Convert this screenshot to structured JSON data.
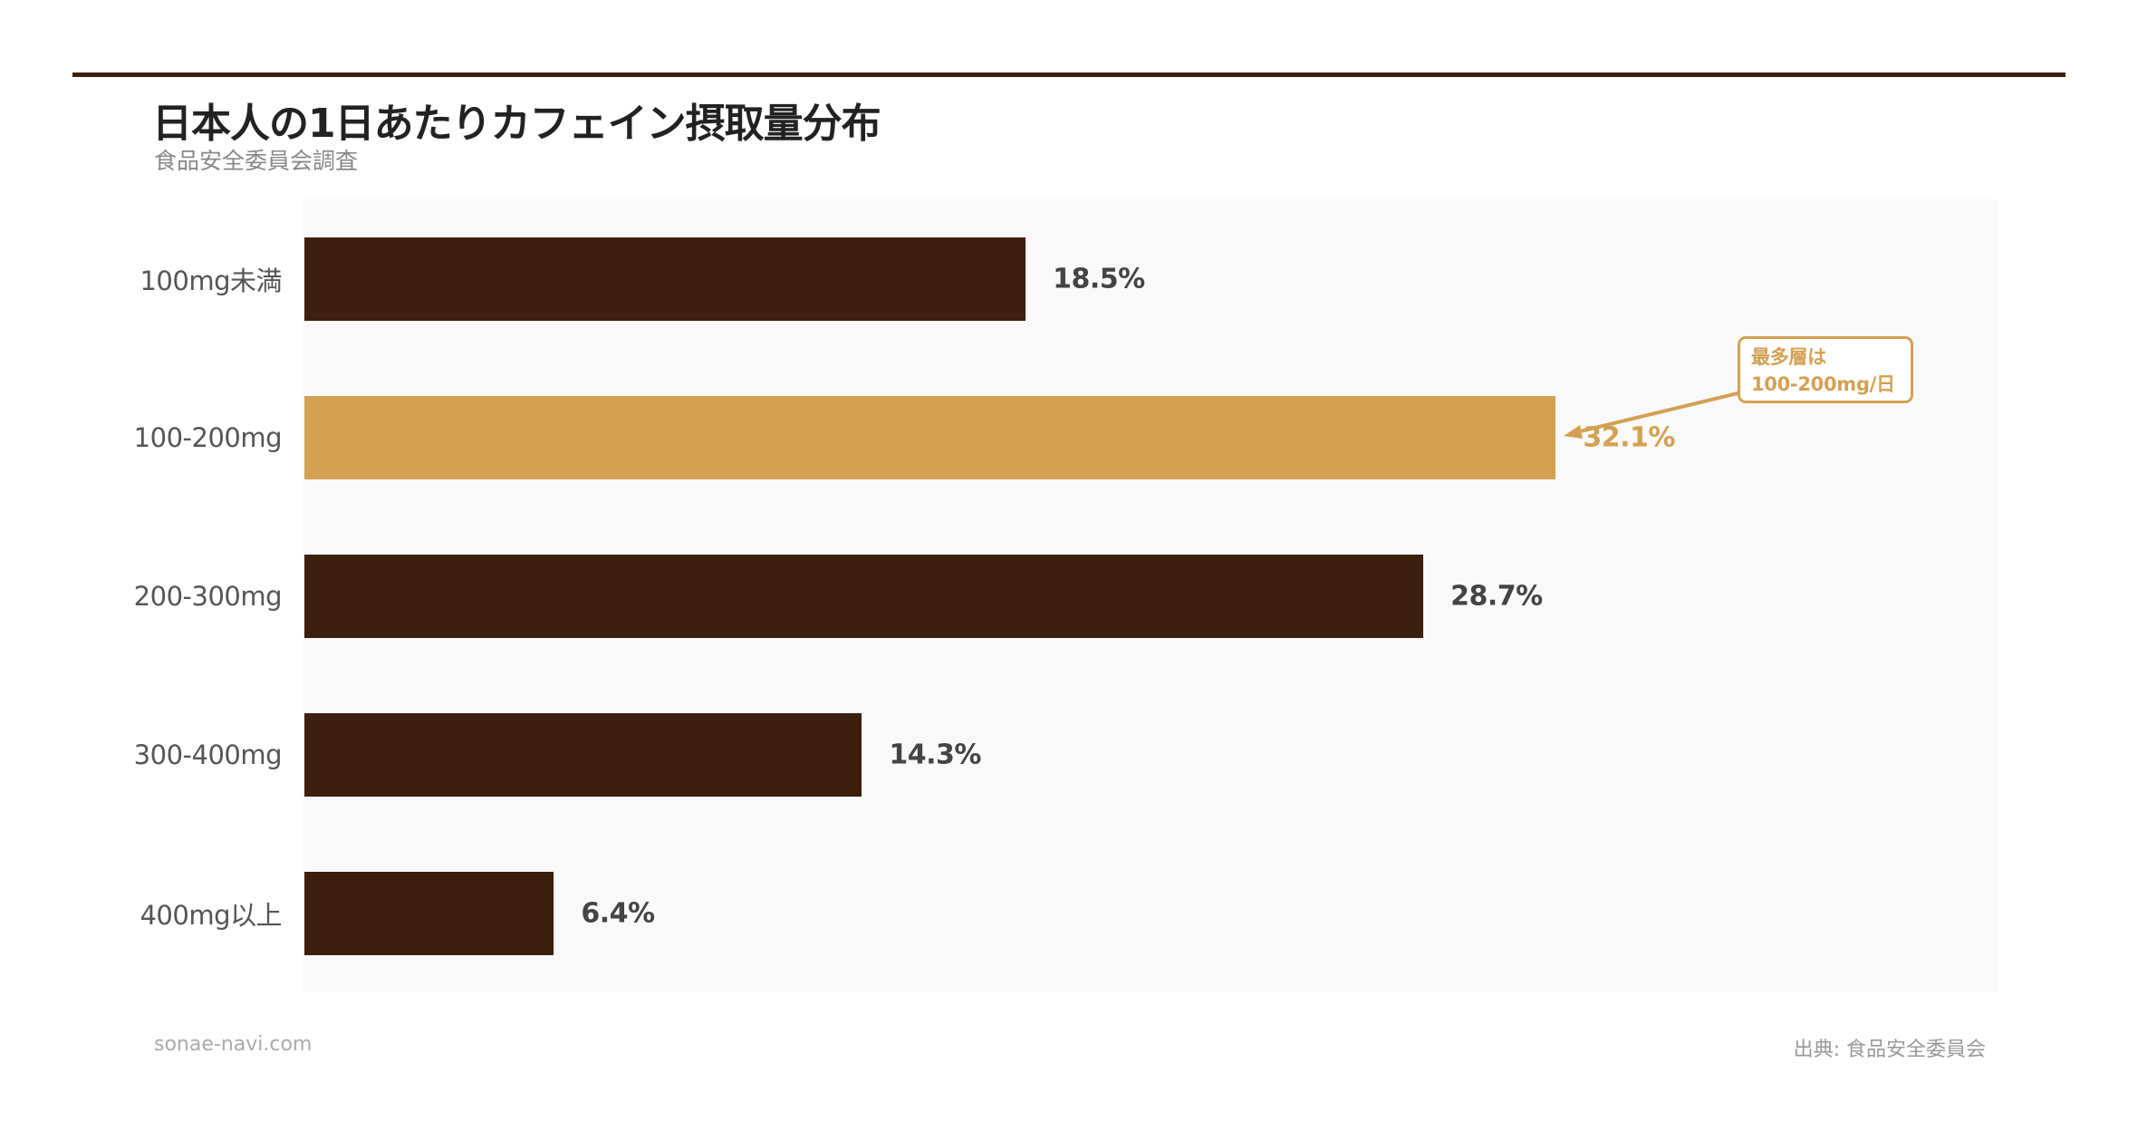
{
  "header": {
    "title": "日本人の1日あたりカフェイン摂取量分布",
    "subtitle": "食品安全委員会調査"
  },
  "footer": {
    "site": "sonae-navi.com",
    "source": "出典: 食品安全委員会"
  },
  "annotation": {
    "line1": "最多層は",
    "line2": "100-200mg/日",
    "target_category": "100-200mg"
  },
  "colors": {
    "bar_default": "#3C1F0C",
    "bar_highlight": "#D4A153",
    "plot_bg": "#F9F9F9",
    "accent_rule": "#3C1F0C"
  },
  "bars": [
    {
      "category": "100mg未満",
      "value": 18.5,
      "label": "18.5%",
      "highlight": false
    },
    {
      "category": "100-200mg",
      "value": 32.1,
      "label": "32.1%",
      "highlight": true
    },
    {
      "category": "200-300mg",
      "value": 28.7,
      "label": "28.7%",
      "highlight": false
    },
    {
      "category": "300-400mg",
      "value": 14.3,
      "label": "14.3%",
      "highlight": false
    },
    {
      "category": "400mg以上",
      "value": 6.4,
      "label": "6.4%",
      "highlight": false
    }
  ],
  "chart_data": {
    "type": "bar",
    "orientation": "horizontal",
    "title": "日本人の1日あたりカフェイン摂取量分布",
    "subtitle": "食品安全委員会調査",
    "categories": [
      "100mg未満",
      "100-200mg",
      "200-300mg",
      "300-400mg",
      "400mg以上"
    ],
    "values": [
      18.5,
      32.1,
      28.7,
      14.3,
      6.4
    ],
    "value_labels": [
      "18.5%",
      "32.1%",
      "28.7%",
      "14.3%",
      "6.4%"
    ],
    "xlabel": "",
    "ylabel": "",
    "xlim": [
      0,
      43.5
    ],
    "grid": false,
    "legend": null,
    "highlighted_category": "100-200mg",
    "annotations": [
      {
        "text": "最多層は 100-200mg/日",
        "points_to": "100-200mg",
        "arrow": true
      }
    ],
    "source": "出典: 食品安全委員会",
    "credit": "sonae-navi.com"
  }
}
